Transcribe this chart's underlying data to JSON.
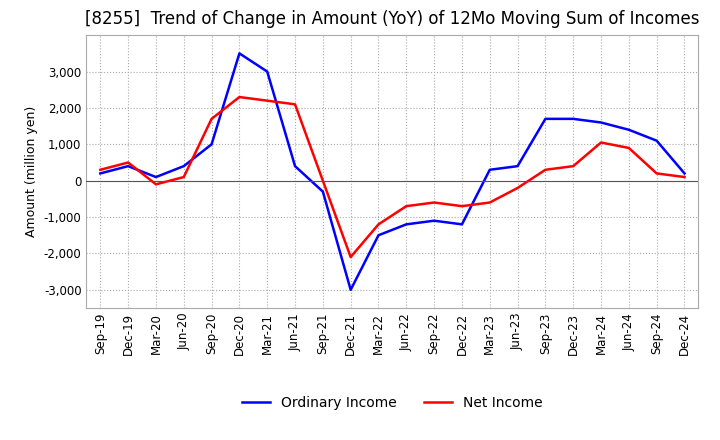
{
  "title": "[8255]  Trend of Change in Amount (YoY) of 12Mo Moving Sum of Incomes",
  "ylabel": "Amount (million yen)",
  "ylim": [
    -3500,
    4000
  ],
  "yticks": [
    -3000,
    -2000,
    -1000,
    0,
    1000,
    2000,
    3000
  ],
  "background_color": "#ffffff",
  "plot_bg_color": "#ffffff",
  "grid_color": "#aaaaaa",
  "ordinary_income_color": "#0000ff",
  "net_income_color": "#ff0000",
  "x_labels": [
    "Sep-19",
    "Dec-19",
    "Mar-20",
    "Jun-20",
    "Sep-20",
    "Dec-20",
    "Mar-21",
    "Jun-21",
    "Sep-21",
    "Dec-21",
    "Mar-22",
    "Jun-22",
    "Sep-22",
    "Dec-22",
    "Mar-23",
    "Jun-23",
    "Sep-23",
    "Dec-23",
    "Mar-24",
    "Jun-24",
    "Sep-24",
    "Dec-24"
  ],
  "ordinary_income": [
    200,
    400,
    100,
    400,
    1000,
    3500,
    3000,
    400,
    -300,
    -3000,
    -1500,
    -1200,
    -1100,
    -1200,
    300,
    400,
    1700,
    1700,
    1600,
    1400,
    1100,
    200
  ],
  "net_income": [
    300,
    500,
    -100,
    100,
    1700,
    2300,
    2200,
    2100,
    0,
    -2100,
    -1200,
    -700,
    -600,
    -700,
    -600,
    -200,
    300,
    400,
    1050,
    900,
    200,
    100
  ],
  "line_width": 1.8,
  "title_fontsize": 12,
  "axis_fontsize": 9,
  "tick_fontsize": 8.5,
  "legend_fontsize": 10
}
